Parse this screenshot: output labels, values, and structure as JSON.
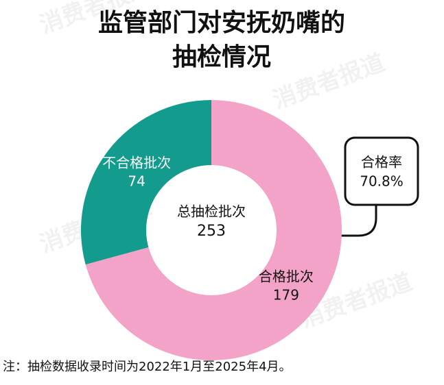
{
  "chart_data": {
    "type": "donut",
    "title_lines": [
      "监管部门对安抚奶嘴的",
      "抽检情况"
    ],
    "categories": [
      "合格批次",
      "不合格批次"
    ],
    "values": [
      179,
      74
    ],
    "colors": [
      "#f3a3c7",
      "#139b8d"
    ],
    "total": {
      "label": "总抽检批次",
      "value": 253
    },
    "annotation": {
      "label": "合格率",
      "value": 70.8,
      "value_label": "70.8%"
    },
    "note": "注：抽检数据收录时间为2022年1月至2025年4月。",
    "watermark": "消费者报道"
  }
}
